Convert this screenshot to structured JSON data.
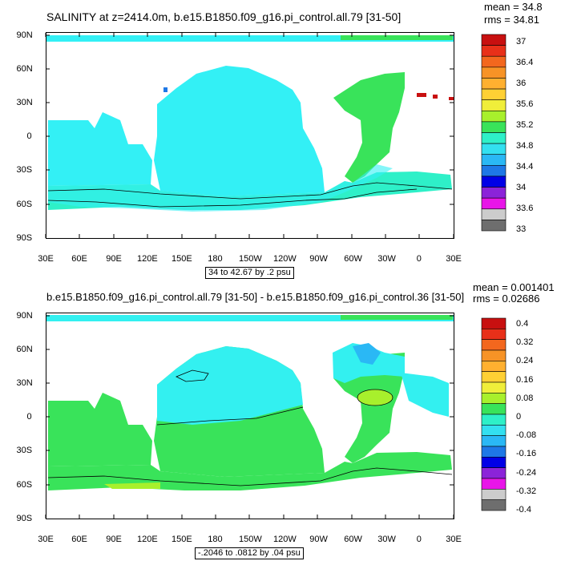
{
  "panel1": {
    "title": "SALINITY at z=2414.0m, b.e15.B1850.f09_g16.pi_control.all.79 [31-50]",
    "mean_label": "mean = 34.8",
    "rms_label": "rms = 34.81",
    "contour_info": "34 to 42.67 by .2 psu",
    "colorbar_labels": [
      "37",
      "36.4",
      "36",
      "35.6",
      "35.2",
      "34.8",
      "34.4",
      "34",
      "33.6",
      "33"
    ]
  },
  "panel2": {
    "title": "b.e15.B1850.f09_g16.pi_control.all.79 [31-50] - b.e15.B1850.f09_g16.pi_control.36 [31-50]",
    "mean_label": "mean = 0.001401",
    "rms_label": "rms = 0.02686",
    "contour_info": "-.2046 to .0812 by .04 psu",
    "colorbar_labels": [
      "0.4",
      "0.32",
      "0.24",
      "0.16",
      "0.08",
      "0",
      "-0.08",
      "-0.16",
      "-0.24",
      "-0.32",
      "-0.4"
    ]
  },
  "axes": {
    "lat_labels": [
      "90N",
      "60N",
      "30N",
      "0",
      "30S",
      "60S",
      "90S"
    ],
    "lon_labels": [
      "30E",
      "60E",
      "90E",
      "120E",
      "150E",
      "180",
      "150W",
      "120W",
      "90W",
      "60W",
      "30W",
      "0",
      "30E"
    ]
  },
  "colors": {
    "colorbar1": [
      "#6e6e6e",
      "#cccccc",
      "#e815e8",
      "#8b23d9",
      "#0000e6",
      "#1e78e6",
      "#2ab8f5",
      "#33e0f0",
      "#2ef0c8",
      "#39e35a",
      "#a8f02c",
      "#f0ee3a",
      "#ffd034",
      "#ffb030",
      "#f79326",
      "#f3671e",
      "#e83019",
      "#c81010"
    ],
    "colorbar2": [
      "#6e6e6e",
      "#cccccc",
      "#e815e8",
      "#8b23d9",
      "#0000e6",
      "#1e78e6",
      "#2ab8f5",
      "#33e0f0",
      "#2ef0c8",
      "#39e35a",
      "#a8f02c",
      "#f0ee3a",
      "#ffd034",
      "#ffb030",
      "#f79326",
      "#f3671e",
      "#e83019",
      "#c81010"
    ],
    "ocean_main1": "#33f0f5",
    "atlantic1": "#39e35a",
    "southern1": "#2ef0c8",
    "ocean_main2": "#33f0f0",
    "green2": "#39e35a",
    "blue2": "#2ab8f5"
  }
}
